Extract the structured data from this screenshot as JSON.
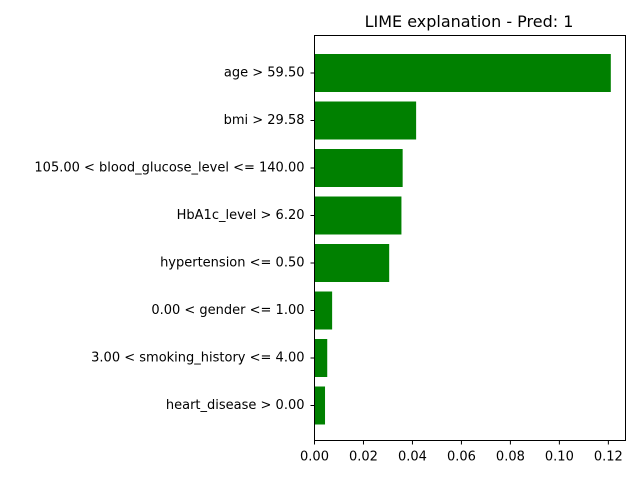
{
  "chart_data": {
    "type": "bar",
    "orientation": "horizontal",
    "title": "LIME explanation - Pred: 1",
    "xlabel": "",
    "ylabel": "",
    "categories": [
      "age > 59.50",
      "bmi > 29.58",
      "105.00 < blood_glucose_level <= 140.00",
      "HbA1c_level > 6.20",
      "hypertension <= 0.50",
      "0.00 < gender <= 1.00",
      "3.00 < smoking_history <= 4.00",
      "heart_disease > 0.00"
    ],
    "values": [
      0.121,
      0.0415,
      0.036,
      0.0355,
      0.0305,
      0.0072,
      0.0052,
      0.0043
    ],
    "xlim": [
      0.0,
      0.127
    ],
    "xticks": [
      "0.00",
      "0.02",
      "0.04",
      "0.06",
      "0.08",
      "0.10",
      "0.12"
    ],
    "bar_color": "#008000",
    "grid": false
  }
}
